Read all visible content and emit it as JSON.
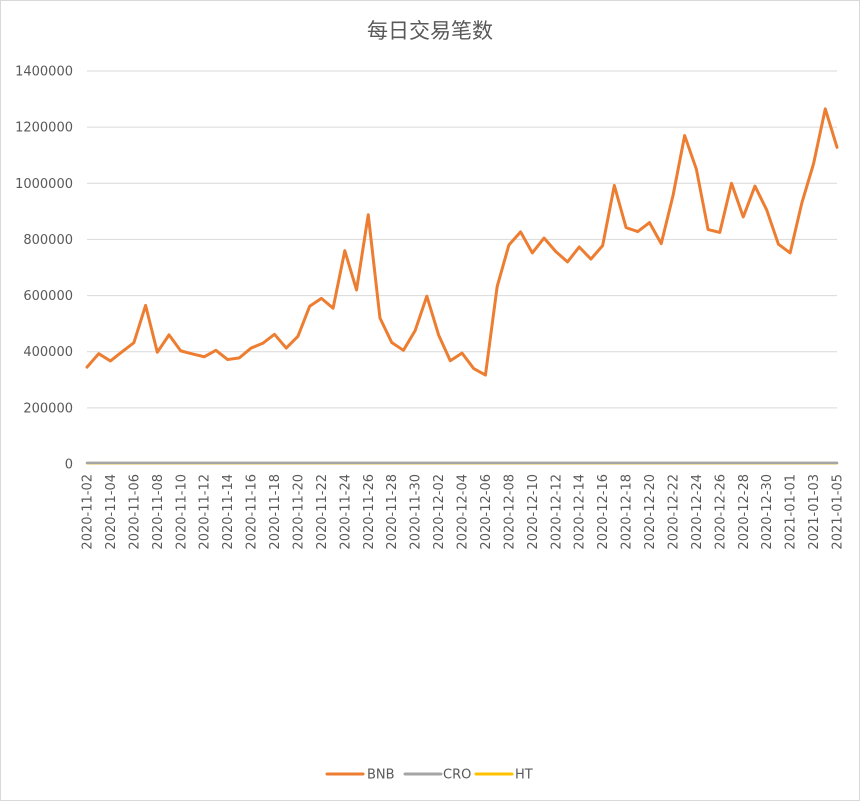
{
  "chart_data": {
    "type": "line",
    "title": "每日交易笔数",
    "xlabel": "",
    "ylabel": "",
    "ylim": [
      0,
      1400000
    ],
    "yticks": [
      0,
      200000,
      400000,
      600000,
      800000,
      1000000,
      1200000,
      1400000
    ],
    "ytick_labels": [
      "0",
      "200000",
      "400000",
      "600000",
      "800000",
      "1000000",
      "1200000",
      "1400000"
    ],
    "grid": true,
    "legend_position": "bottom",
    "x": [
      "2020-11-02",
      "2020-11-03",
      "2020-11-04",
      "2020-11-05",
      "2020-11-06",
      "2020-11-07",
      "2020-11-08",
      "2020-11-09",
      "2020-11-10",
      "2020-11-11",
      "2020-11-12",
      "2020-11-13",
      "2020-11-14",
      "2020-11-15",
      "2020-11-16",
      "2020-11-17",
      "2020-11-18",
      "2020-11-19",
      "2020-11-20",
      "2020-11-21",
      "2020-11-22",
      "2020-11-23",
      "2020-11-24",
      "2020-11-25",
      "2020-11-26",
      "2020-11-27",
      "2020-11-28",
      "2020-11-29",
      "2020-11-30",
      "2020-12-01",
      "2020-12-02",
      "2020-12-03",
      "2020-12-04",
      "2020-12-05",
      "2020-12-06",
      "2020-12-07",
      "2020-12-08",
      "2020-12-09",
      "2020-12-10",
      "2020-12-11",
      "2020-12-12",
      "2020-12-13",
      "2020-12-14",
      "2020-12-15",
      "2020-12-16",
      "2020-12-17",
      "2020-12-18",
      "2020-12-19",
      "2020-12-20",
      "2020-12-21",
      "2020-12-22",
      "2020-12-23",
      "2020-12-24",
      "2020-12-25",
      "2020-12-26",
      "2020-12-27",
      "2020-12-28",
      "2020-12-29",
      "2020-12-30",
      "2020-12-31",
      "2021-01-01",
      "2021-01-02",
      "2021-01-03",
      "2021-01-04",
      "2021-01-05"
    ],
    "xtick_labels": [
      "2020-11-02",
      "2020-11-04",
      "2020-11-06",
      "2020-11-08",
      "2020-11-10",
      "2020-11-12",
      "2020-11-14",
      "2020-11-16",
      "2020-11-18",
      "2020-11-20",
      "2020-11-22",
      "2020-11-24",
      "2020-11-26",
      "2020-11-28",
      "2020-11-30",
      "2020-12-02",
      "2020-12-04",
      "2020-12-06",
      "2020-12-08",
      "2020-12-10",
      "2020-12-12",
      "2020-12-14",
      "2020-12-16",
      "2020-12-18",
      "2020-12-20",
      "2020-12-22",
      "2020-12-24",
      "2020-12-26",
      "2020-12-28",
      "2020-12-30",
      "2021-01-01",
      "2021-01-03",
      "2021-01-05"
    ],
    "series": [
      {
        "name": "BNB",
        "color": "#ed7d31",
        "values": [
          345000,
          393000,
          367000,
          400000,
          432000,
          565000,
          398000,
          460000,
          403000,
          392000,
          382000,
          405000,
          372000,
          378000,
          413000,
          430000,
          462000,
          413000,
          455000,
          562000,
          590000,
          555000,
          760000,
          620000,
          888000,
          520000,
          433000,
          405000,
          475000,
          598000,
          460000,
          368000,
          395000,
          340000,
          317000,
          632000,
          780000,
          827000,
          752000,
          805000,
          757000,
          720000,
          773000,
          730000,
          778000,
          992000,
          842000,
          828000,
          860000,
          785000,
          955000,
          1170000,
          1050000,
          835000,
          825000,
          1000000,
          880000,
          990000,
          905000,
          783000,
          752000,
          930000,
          1070000,
          1265000,
          1128000
        ]
      },
      {
        "name": "CRO",
        "color": "#a5a5a5",
        "values": [
          4000,
          4000,
          4000,
          4000,
          4000,
          4000,
          4000,
          4000,
          4000,
          4000,
          4000,
          4000,
          4000,
          4000,
          4000,
          4000,
          4000,
          4000,
          4000,
          4000,
          4000,
          4000,
          4000,
          4000,
          4000,
          4000,
          4000,
          4000,
          4000,
          4000,
          4000,
          4000,
          4000,
          4000,
          4000,
          4000,
          4000,
          4000,
          4000,
          4000,
          4000,
          4000,
          4000,
          4000,
          4000,
          4000,
          4000,
          4000,
          4000,
          4000,
          4000,
          4000,
          4000,
          4000,
          4000,
          4000,
          4000,
          4000,
          4000,
          4000,
          4000,
          4000,
          4000,
          4000,
          4000
        ]
      },
      {
        "name": "HT",
        "color": "#ffc000",
        "values": [
          3000,
          3000,
          3000,
          3000,
          3000,
          3000,
          3000,
          3000,
          3000,
          3000,
          3000,
          3000,
          3000,
          3000,
          3000,
          3000,
          3000,
          3000,
          3000,
          3000,
          3000,
          3000,
          3000,
          3000,
          3000,
          3000,
          3000,
          3000,
          3000,
          3000,
          3000,
          3000,
          3000,
          3000,
          3000,
          3000,
          3000,
          3000,
          3000,
          3000,
          3000,
          3000,
          3000,
          3000,
          3000,
          3000,
          3000,
          3000,
          3000,
          3000,
          3000,
          3000,
          3000,
          3000,
          3000,
          3000,
          3000,
          3000,
          3000,
          3000,
          3000,
          3000,
          3000,
          3000,
          3000
        ]
      }
    ]
  },
  "colors": {
    "grid": "#d9d9d9",
    "axis": "#d9d9d9",
    "text": "#595959"
  }
}
